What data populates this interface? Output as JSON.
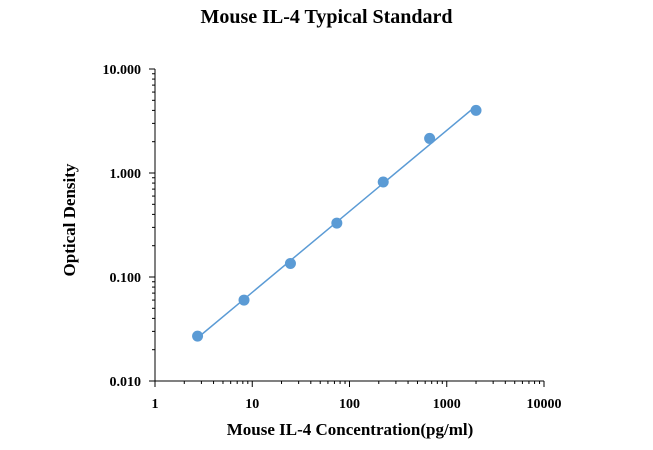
{
  "chart_data": {
    "type": "scatter",
    "title": "Mouse IL-4 Typical Standard",
    "xlabel": "Mouse IL-4 Concentration(pg/ml)",
    "ylabel": "Optical Density",
    "x_scale": "log",
    "y_scale": "log",
    "xlim": [
      1,
      10000
    ],
    "ylim": [
      0.01,
      10
    ],
    "x_ticks": [
      "1",
      "10",
      "100",
      "1000",
      "10000"
    ],
    "y_ticks": [
      "0.010",
      "0.100",
      "1.000",
      "10.000"
    ],
    "grid": false,
    "legend": "none",
    "series": [
      {
        "points": [
          {
            "x": 2.74,
            "y": 0.027
          },
          {
            "x": 8.23,
            "y": 0.06
          },
          {
            "x": 24.7,
            "y": 0.135
          },
          {
            "x": 74.1,
            "y": 0.33
          },
          {
            "x": 222.2,
            "y": 0.82
          },
          {
            "x": 666.7,
            "y": 2.15
          },
          {
            "x": 2000,
            "y": 4.0
          }
        ],
        "trendline": true,
        "color": "#5b9bd5"
      }
    ]
  }
}
